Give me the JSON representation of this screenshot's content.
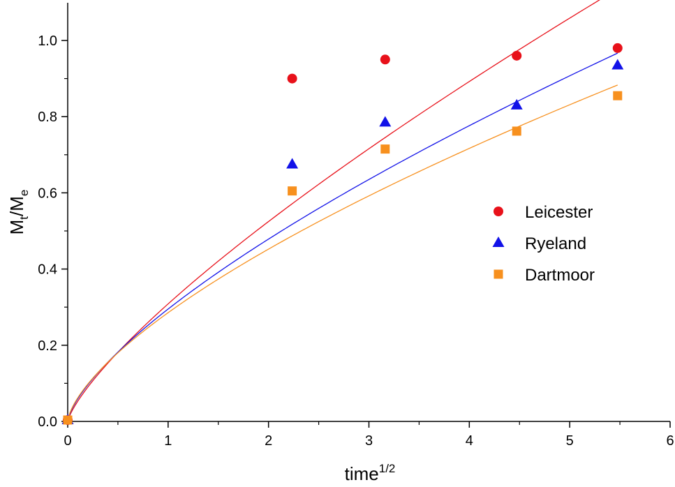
{
  "chart_data": {
    "type": "scatter",
    "title": "",
    "xlabel": {
      "base": "time",
      "sup": "1/2"
    },
    "ylabel": {
      "base_a": "M",
      "sub_a": "t",
      "sep": "/",
      "base_b": "M",
      "sub_b": "e"
    },
    "xlim": [
      0,
      6
    ],
    "ylim": [
      0,
      1.1
    ],
    "x_ticks": [
      0,
      1,
      2,
      3,
      4,
      5,
      6
    ],
    "x_tick_labels": [
      "0",
      "1",
      "2",
      "3",
      "4",
      "5",
      "6"
    ],
    "y_ticks": [
      0.0,
      0.2,
      0.4,
      0.6,
      0.8,
      1.0
    ],
    "y_tick_labels": [
      "0.0",
      "0.2",
      "0.4",
      "0.6",
      "0.8",
      "1.0"
    ],
    "grid": false,
    "legend_position": "right",
    "series": [
      {
        "name": "Leicester",
        "marker": "circle",
        "color": "#e8111a",
        "x": [
          0,
          2.236,
          3.162,
          4.472,
          5.477
        ],
        "y": [
          0.0,
          0.9,
          0.95,
          0.96,
          0.98
        ],
        "fit": {
          "type": "power",
          "a": 0.3085,
          "b": 0.7661,
          "xmax": 5.3
        }
      },
      {
        "name": "Ryeland",
        "marker": "triangle",
        "color": "#1212e8",
        "x": [
          0,
          2.236,
          3.162,
          4.472,
          5.477
        ],
        "y": [
          0.0,
          0.675,
          0.785,
          0.83,
          0.935
        ],
        "fit": {
          "type": "power",
          "a": 0.295,
          "b": 0.698,
          "xmax": 5.477
        }
      },
      {
        "name": "Dartmoor",
        "marker": "square",
        "color": "#f7901e",
        "x": [
          0,
          2.236,
          3.162,
          4.472,
          5.477
        ],
        "y": [
          0.0,
          0.605,
          0.715,
          0.762,
          0.855
        ],
        "fit": {
          "type": "power",
          "a": 0.2854,
          "b": 0.6642,
          "xmax": 5.477
        }
      }
    ]
  }
}
